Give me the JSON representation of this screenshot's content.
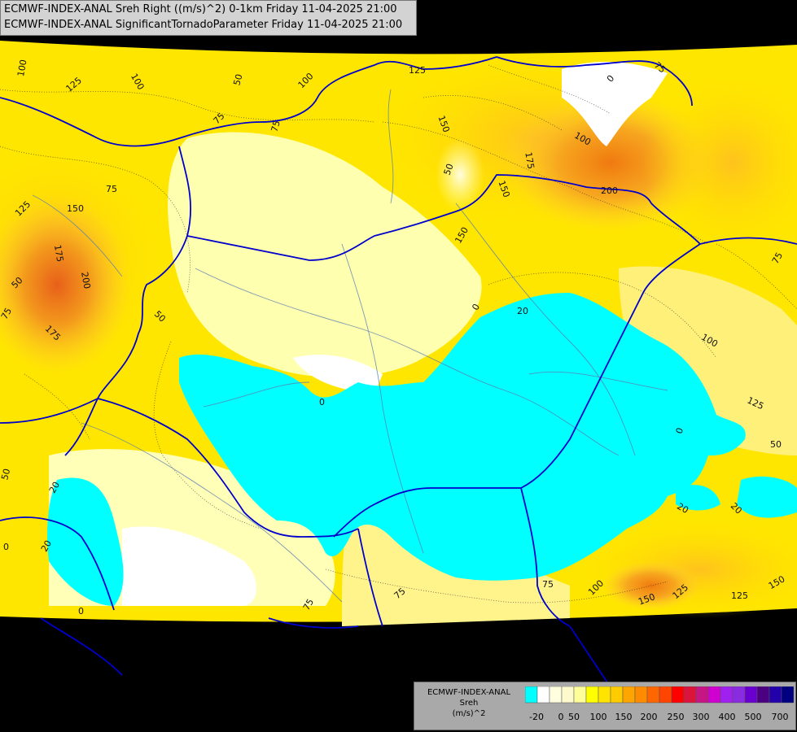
{
  "header": {
    "line1": "ECMWF-INDEX-ANAL Sreh Right ((m/s)^2) 0-1km Friday 11-04-2025 21:00",
    "line2": "ECMWF-INDEX-ANAL SignificantTornadoParameter Friday 11-04-2025 21:00"
  },
  "legend": {
    "line1": "ECMWF-INDEX-ANAL",
    "line2": "Sreh",
    "line3": "(m/s)^2",
    "colors": [
      "#00ffff",
      "#ffffff",
      "#ffffe0",
      "#fffacd",
      "#ffff99",
      "#ffff00",
      "#ffe400",
      "#ffcc00",
      "#ffa500",
      "#ff8c00",
      "#ff6600",
      "#ff4500",
      "#ff0000",
      "#dc143c",
      "#c71585",
      "#d000d0",
      "#a020f0",
      "#8a2be2",
      "#6a00d0",
      "#4b0082",
      "#2200aa",
      "#000080"
    ],
    "ticks": [
      "-20",
      "0",
      "50",
      "100",
      "150",
      "200",
      "250",
      "300",
      "400",
      "500",
      "700"
    ]
  },
  "contour_labels": [
    {
      "text": "100",
      "region": "northwest"
    },
    {
      "text": "125",
      "region": "northwest"
    },
    {
      "text": "100",
      "region": "north"
    },
    {
      "text": "50",
      "region": "north"
    },
    {
      "text": "75",
      "region": "north"
    },
    {
      "text": "75",
      "region": "north"
    },
    {
      "text": "100",
      "region": "north"
    },
    {
      "text": "125",
      "region": "north"
    },
    {
      "text": "0",
      "region": "north"
    },
    {
      "text": "75",
      "region": "northeast"
    },
    {
      "text": "150",
      "region": "north"
    },
    {
      "text": "50",
      "region": "north"
    },
    {
      "text": "175",
      "region": "northeast"
    },
    {
      "text": "100",
      "region": "northeast"
    },
    {
      "text": "150",
      "region": "northeast"
    },
    {
      "text": "200",
      "region": "northeast"
    },
    {
      "text": "150",
      "region": "center"
    },
    {
      "text": "75",
      "region": "west"
    },
    {
      "text": "125",
      "region": "west"
    },
    {
      "text": "150",
      "region": "west"
    },
    {
      "text": "175",
      "region": "west"
    },
    {
      "text": "50",
      "region": "west"
    },
    {
      "text": "200",
      "region": "west"
    },
    {
      "text": "75",
      "region": "west"
    },
    {
      "text": "175",
      "region": "west"
    },
    {
      "text": "50",
      "region": "west"
    },
    {
      "text": "0",
      "region": "center"
    },
    {
      "text": "20",
      "region": "center"
    },
    {
      "text": "75",
      "region": "east"
    },
    {
      "text": "100",
      "region": "east"
    },
    {
      "text": "125",
      "region": "east"
    },
    {
      "text": "50",
      "region": "east"
    },
    {
      "text": "0",
      "region": "east"
    },
    {
      "text": "20",
      "region": "southeast"
    },
    {
      "text": "20",
      "region": "southeast"
    },
    {
      "text": "0",
      "region": "center"
    },
    {
      "text": "50",
      "region": "southwest"
    },
    {
      "text": "20",
      "region": "southwest"
    },
    {
      "text": "0",
      "region": "southwest"
    },
    {
      "text": "20",
      "region": "southwest"
    },
    {
      "text": "0",
      "region": "southwest"
    },
    {
      "text": "75",
      "region": "south"
    },
    {
      "text": "75",
      "region": "south"
    },
    {
      "text": "75",
      "region": "south"
    },
    {
      "text": "100",
      "region": "southeast"
    },
    {
      "text": "150",
      "region": "southeast"
    },
    {
      "text": "125",
      "region": "southeast"
    },
    {
      "text": "125",
      "region": "southeast"
    },
    {
      "text": "150",
      "region": "southeast"
    }
  ]
}
